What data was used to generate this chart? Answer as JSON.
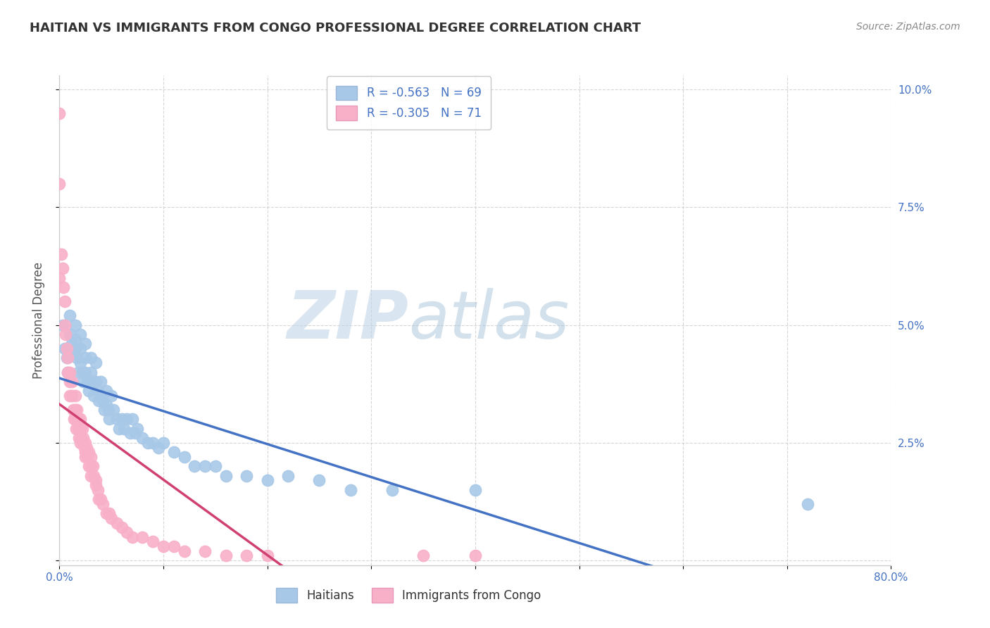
{
  "title": "HAITIAN VS IMMIGRANTS FROM CONGO PROFESSIONAL DEGREE CORRELATION CHART",
  "source": "Source: ZipAtlas.com",
  "ylabel": "Professional Degree",
  "xlim": [
    0.0,
    0.8
  ],
  "ylim": [
    -0.001,
    0.103
  ],
  "xticks": [
    0.0,
    0.1,
    0.2,
    0.3,
    0.4,
    0.5,
    0.6,
    0.7,
    0.8
  ],
  "xtick_labels": [
    "0.0%",
    "",
    "",
    "",
    "",
    "",
    "",
    "",
    "80.0%"
  ],
  "yticks": [
    0.0,
    0.025,
    0.05,
    0.075,
    0.1
  ],
  "ytick_labels_right": [
    "",
    "2.5%",
    "5.0%",
    "7.5%",
    "10.0%"
  ],
  "haitian_color": "#a8c8e8",
  "congo_color": "#f8b0c8",
  "haitian_line_color": "#4472c4",
  "congo_line_color": "#d04070",
  "watermark_zip": "ZIP",
  "watermark_atlas": "atlas",
  "title_color": "#333333",
  "tick_color": "#4472c4",
  "R_haitian": -0.563,
  "N_haitian": 69,
  "R_congo": -0.305,
  "N_congo": 71,
  "haitian_x": [
    0.003,
    0.005,
    0.007,
    0.008,
    0.01,
    0.01,
    0.012,
    0.013,
    0.015,
    0.015,
    0.015,
    0.017,
    0.018,
    0.02,
    0.02,
    0.02,
    0.022,
    0.023,
    0.025,
    0.025,
    0.025,
    0.027,
    0.028,
    0.03,
    0.03,
    0.032,
    0.033,
    0.035,
    0.035,
    0.037,
    0.038,
    0.04,
    0.04,
    0.042,
    0.043,
    0.045,
    0.045,
    0.047,
    0.048,
    0.05,
    0.052,
    0.055,
    0.057,
    0.06,
    0.062,
    0.065,
    0.068,
    0.07,
    0.073,
    0.075,
    0.08,
    0.085,
    0.09,
    0.095,
    0.1,
    0.11,
    0.12,
    0.13,
    0.14,
    0.15,
    0.16,
    0.18,
    0.2,
    0.22,
    0.25,
    0.28,
    0.32,
    0.4,
    0.72
  ],
  "haitian_y": [
    0.05,
    0.045,
    0.043,
    0.04,
    0.052,
    0.048,
    0.046,
    0.044,
    0.05,
    0.047,
    0.045,
    0.043,
    0.04,
    0.048,
    0.045,
    0.042,
    0.04,
    0.038,
    0.046,
    0.043,
    0.04,
    0.038,
    0.036,
    0.043,
    0.04,
    0.038,
    0.035,
    0.042,
    0.038,
    0.036,
    0.034,
    0.038,
    0.035,
    0.034,
    0.032,
    0.036,
    0.033,
    0.032,
    0.03,
    0.035,
    0.032,
    0.03,
    0.028,
    0.03,
    0.028,
    0.03,
    0.027,
    0.03,
    0.027,
    0.028,
    0.026,
    0.025,
    0.025,
    0.024,
    0.025,
    0.023,
    0.022,
    0.02,
    0.02,
    0.02,
    0.018,
    0.018,
    0.017,
    0.018,
    0.017,
    0.015,
    0.015,
    0.015,
    0.012
  ],
  "congo_x": [
    0.0,
    0.0,
    0.0,
    0.002,
    0.003,
    0.004,
    0.005,
    0.005,
    0.006,
    0.007,
    0.008,
    0.008,
    0.01,
    0.01,
    0.01,
    0.012,
    0.012,
    0.013,
    0.014,
    0.015,
    0.015,
    0.015,
    0.016,
    0.017,
    0.018,
    0.018,
    0.019,
    0.02,
    0.02,
    0.02,
    0.021,
    0.022,
    0.022,
    0.023,
    0.024,
    0.025,
    0.025,
    0.025,
    0.026,
    0.027,
    0.028,
    0.028,
    0.03,
    0.03,
    0.03,
    0.032,
    0.033,
    0.035,
    0.035,
    0.037,
    0.038,
    0.04,
    0.042,
    0.045,
    0.048,
    0.05,
    0.055,
    0.06,
    0.065,
    0.07,
    0.08,
    0.09,
    0.1,
    0.11,
    0.12,
    0.14,
    0.16,
    0.18,
    0.2,
    0.35,
    0.4
  ],
  "congo_y": [
    0.095,
    0.08,
    0.06,
    0.065,
    0.062,
    0.058,
    0.055,
    0.05,
    0.048,
    0.045,
    0.043,
    0.04,
    0.04,
    0.038,
    0.035,
    0.038,
    0.035,
    0.032,
    0.03,
    0.035,
    0.032,
    0.03,
    0.028,
    0.032,
    0.03,
    0.028,
    0.026,
    0.03,
    0.028,
    0.025,
    0.026,
    0.028,
    0.025,
    0.026,
    0.024,
    0.025,
    0.023,
    0.022,
    0.024,
    0.022,
    0.02,
    0.023,
    0.022,
    0.02,
    0.018,
    0.02,
    0.018,
    0.017,
    0.016,
    0.015,
    0.013,
    0.013,
    0.012,
    0.01,
    0.01,
    0.009,
    0.008,
    0.007,
    0.006,
    0.005,
    0.005,
    0.004,
    0.003,
    0.003,
    0.002,
    0.002,
    0.001,
    0.001,
    0.001,
    0.001,
    0.001
  ]
}
